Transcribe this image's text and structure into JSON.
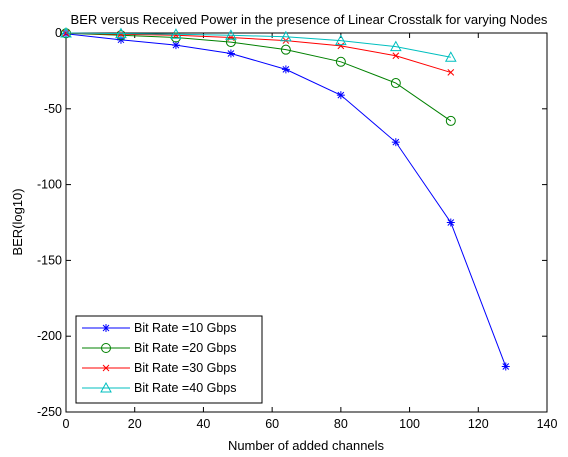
{
  "chart_data": {
    "type": "line",
    "title": "BER versus Received Power in the presence of Linear Crosstalk for varying Nodes",
    "xlabel": "Number of added channels",
    "ylabel": "BER(log10)",
    "xlim": [
      0,
      140
    ],
    "ylim": [
      -250,
      0
    ],
    "xticks": [
      0,
      20,
      40,
      60,
      80,
      100,
      120,
      140
    ],
    "yticks": [
      0,
      -50,
      -100,
      -150,
      -200,
      -250
    ],
    "legend_position": "bottom-left",
    "grid": false,
    "series": [
      {
        "name": "Bit Rate =10 Gbps",
        "color": "#0000ff",
        "marker": "star",
        "x": [
          0,
          16,
          32,
          48,
          64,
          80,
          96,
          112,
          128
        ],
        "y": [
          -0.5,
          -4.5,
          -8,
          -13.5,
          -24,
          -41,
          -72,
          -125,
          -220
        ]
      },
      {
        "name": "Bit Rate =20 Gbps",
        "color": "#008000",
        "marker": "circle",
        "x": [
          0,
          16,
          32,
          48,
          64,
          80,
          96,
          112
        ],
        "y": [
          -0.2,
          -1.5,
          -3,
          -6,
          -11,
          -19,
          -33,
          -58
        ]
      },
      {
        "name": "Bit Rate =30 Gbps",
        "color": "#ff0000",
        "marker": "x",
        "x": [
          0,
          16,
          32,
          48,
          64,
          80,
          96,
          112
        ],
        "y": [
          -0.1,
          -0.8,
          -1.5,
          -3,
          -5,
          -8.5,
          -15,
          -26
        ]
      },
      {
        "name": "Bit Rate =40 Gbps",
        "color": "#00bfbf",
        "marker": "triangle",
        "x": [
          0,
          16,
          32,
          48,
          64,
          80,
          96,
          112
        ],
        "y": [
          0,
          -0.4,
          -0.8,
          -1.5,
          -2.5,
          -5,
          -9,
          -16
        ]
      }
    ]
  }
}
